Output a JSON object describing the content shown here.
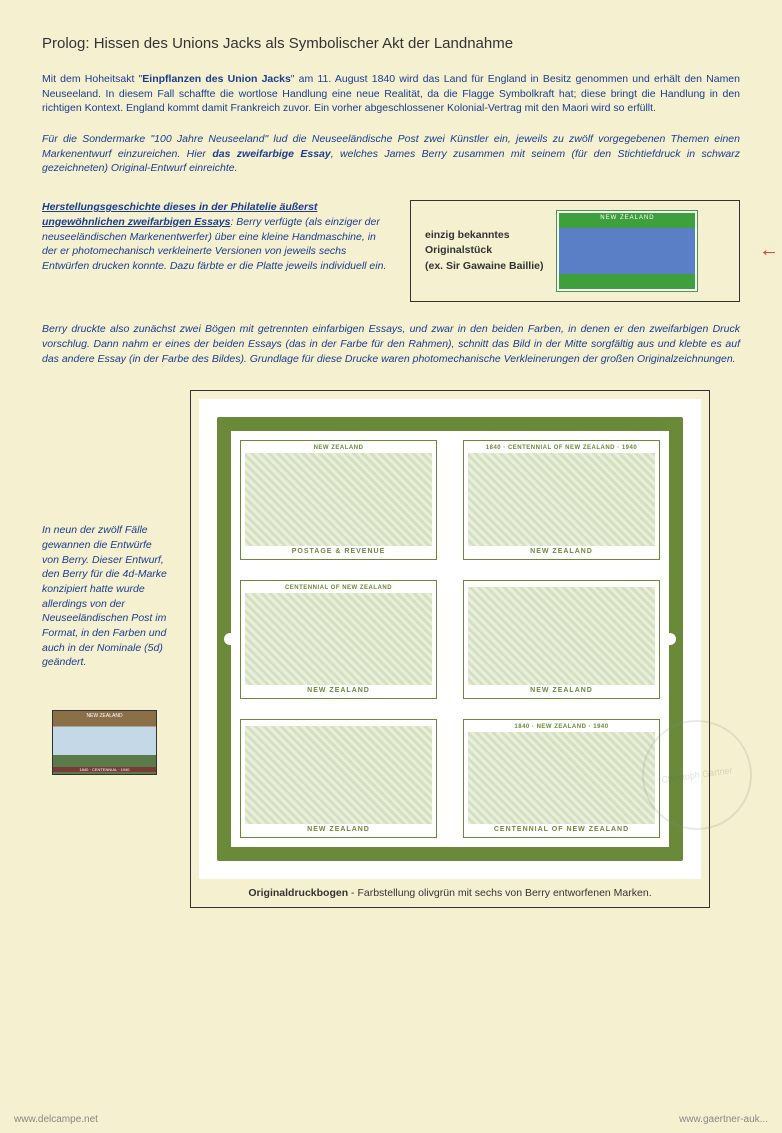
{
  "title": "Prolog: Hissen des Unions Jacks als Symbolischer Akt der Landnahme",
  "para1": {
    "pre": "Mit dem Hoheitsakt \"",
    "bold": "Einpflanzen des Union Jacks",
    "post": "\" am 11. August 1840 wird das Land für England in Besitz genommen und erhält den Namen Neuseeland. In diesem Fall schaffte die wortlose Handlung eine neue Realität, da die Flagge Symbolkraft hat; diese bringt die Handlung in den richtigen Kontext. England kommt damit Frankreich zuvor. Ein vorher abgeschlossener Kolonial-Vertrag mit den Maori wird so erfüllt."
  },
  "para2": {
    "pre": "Für die Sondermarke \"100 Jahre Neuseeland\" lud die Neuseeländische Post zwei Künstler ein, jeweils zu zwölf vorgegebenen Themen einen Markenentwurf einzureichen. Hier ",
    "bold": "das zweifarbige Essay",
    "post": ", welches James Berry zusammen mit seinem (für den Stichtiefdruck in schwarz gezeichneten) Original-Entwurf einreichte."
  },
  "essay": {
    "heading": "Herstellungsgeschichte dieses in der Philatelie äußerst ungewöhnlichen zweifarbigen Essays",
    "body": ": Berry verfügte (als einziger der neuseeländischen Markenentwerfer) über eine kleine Handmaschine, in der er photomechanisch verkleinerte Versionen von jeweils sechs Entwürfen drucken konnte. Dazu färbte er die Platte jeweils individuell ein."
  },
  "essaybox": {
    "line1": "einzig bekanntes",
    "line2": "Originalstück",
    "line3": "(ex. Sir Gawaine Baillie)"
  },
  "para3": "Berry druckte also zunächst zwei Bögen mit getrennten einfarbigen Essays, und zwar in den beiden Farben, in denen er den zweifarbigen Druck vorschlug. Dann nahm er eines der beiden Essays (das in der Farbe für den Rahmen), schnitt das Bild in der Mitte sorgfältig aus und klebte es auf das andere Essay (in der Farbe des Bildes). Grundlage für diese Drucke waren photomechanische Verkleinerungen der großen Originalzeichnungen.",
  "sidepara": "In neun der zwölf Fälle gewannen die Entwürfe von Berry. Dieser Entwurf, den Berry für die 4d-Marke konzipiert hatte wurde allerdings von der Neuseeländischen Post im Format, in den Farben und auch in der Nominale (5d) geändert.",
  "sheet": {
    "stamps": [
      {
        "top": "NEW ZEALAND",
        "bot": "POSTAGE & REVENUE"
      },
      {
        "top": "1840 · CENTENNIAL OF NEW ZEALAND · 1940",
        "bot": "NEW ZEALAND"
      },
      {
        "top": "CENTENNIAL OF NEW ZEALAND",
        "bot": "NEW ZEALAND"
      },
      {
        "top": "",
        "bot": "NEW ZEALAND"
      },
      {
        "top": "",
        "bot": "NEW ZEALAND"
      },
      {
        "top": "1840 · NEW ZEALAND · 1940",
        "bot": "CENTENNIAL OF NEW ZEALAND"
      }
    ]
  },
  "caption": {
    "bold": "Originaldruckbogen",
    "rest": " - Farbstellung olivgrün mit sechs von Berry entworfenen Marken."
  },
  "footer": {
    "left": "www.delcampe.net",
    "right": "www.gaertner-auk..."
  },
  "watermark": "Christoph Gärtner"
}
